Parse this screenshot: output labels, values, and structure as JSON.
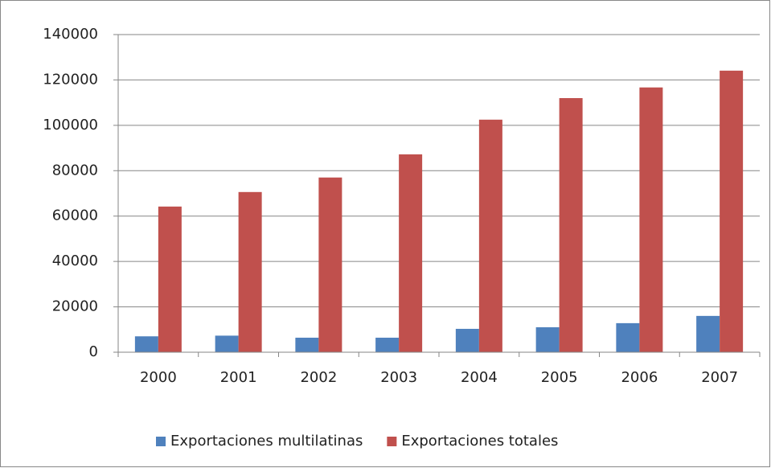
{
  "chart_data": {
    "type": "bar",
    "categories": [
      "2000",
      "2001",
      "2002",
      "2003",
      "2004",
      "2005",
      "2006",
      "2007"
    ],
    "series": [
      {
        "name": "Exportaciones multilatinas",
        "color": "#4f81bd",
        "values": [
          7000,
          7300,
          6400,
          6400,
          10300,
          11000,
          12800,
          16000
        ]
      },
      {
        "name": "Exportaciones totales",
        "color": "#c0504d",
        "values": [
          64200,
          70600,
          77000,
          87200,
          102500,
          112000,
          116700,
          124100
        ]
      }
    ],
    "ylim": [
      0,
      140000
    ],
    "yticks": [
      0,
      20000,
      40000,
      60000,
      80000,
      100000,
      120000,
      140000
    ],
    "grid": true,
    "legend": "bottom"
  }
}
